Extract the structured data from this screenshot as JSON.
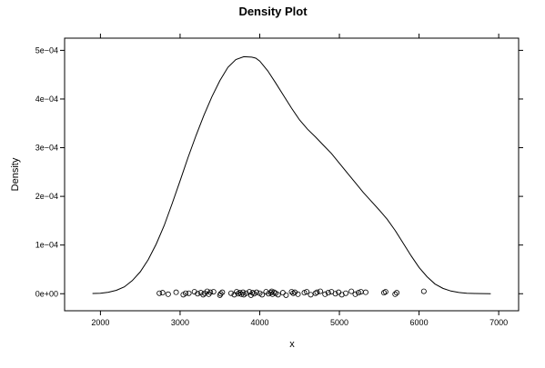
{
  "chart_data": {
    "type": "line",
    "title": "Density Plot",
    "xlabel": "x",
    "ylabel": "Density",
    "xlim": [
      1550,
      7250
    ],
    "ylim": [
      -3.5e-05,
      0.000525
    ],
    "x_ticks": [
      {
        "value": 2000,
        "label": "2000"
      },
      {
        "value": 3000,
        "label": "3000"
      },
      {
        "value": 4000,
        "label": "4000"
      },
      {
        "value": 5000,
        "label": "5000"
      },
      {
        "value": 6000,
        "label": "6000"
      },
      {
        "value": 7000,
        "label": "7000"
      }
    ],
    "y_ticks": [
      {
        "value": 0,
        "label": "0e+00"
      },
      {
        "value": 0.0001,
        "label": "1e−04"
      },
      {
        "value": 0.0002,
        "label": "2e−04"
      },
      {
        "value": 0.0003,
        "label": "3e−04"
      },
      {
        "value": 0.0004,
        "label": "4e−04"
      },
      {
        "value": 0.0005,
        "label": "5e−04"
      }
    ],
    "grid": false,
    "series": [
      {
        "kind": "density",
        "x": [
          1900,
          2000,
          2100,
          2200,
          2300,
          2400,
          2500,
          2600,
          2700,
          2800,
          2900,
          3000,
          3100,
          3200,
          3300,
          3400,
          3500,
          3600,
          3700,
          3800,
          3900,
          3950,
          4000,
          4100,
          4200,
          4300,
          4400,
          4500,
          4600,
          4700,
          4800,
          4900,
          5000,
          5100,
          5200,
          5300,
          5400,
          5500,
          5600,
          5700,
          5800,
          5900,
          6000,
          6100,
          6200,
          6300,
          6400,
          6500,
          6600,
          6700,
          6800,
          6900
        ],
        "y": [
          5e-07,
          1e-06,
          3e-06,
          7e-06,
          1.4e-05,
          2.7e-05,
          4.5e-05,
          7e-05,
          0.000102,
          0.00014,
          0.000185,
          0.000232,
          0.00028,
          0.000325,
          0.000367,
          0.000405,
          0.000438,
          0.000465,
          0.000481,
          0.000487,
          0.000486,
          0.000484,
          0.000478,
          0.000458,
          0.000433,
          0.000407,
          0.000381,
          0.000357,
          0.000338,
          0.000322,
          0.000305,
          0.000288,
          0.000268,
          0.000248,
          0.000228,
          0.000208,
          0.00019,
          0.000172,
          0.000153,
          0.00013,
          0.000104,
          7.8e-05,
          5.4e-05,
          3.5e-05,
          2e-05,
          1.1e-05,
          5.5e-06,
          2.5e-06,
          1e-06,
          5e-07,
          2e-07,
          1e-07
        ]
      },
      {
        "kind": "rug-points",
        "x": [
          2740,
          2780,
          2850,
          2950,
          3040,
          3070,
          3110,
          3180,
          3220,
          3260,
          3290,
          3310,
          3340,
          3360,
          3380,
          3420,
          3500,
          3510,
          3530,
          3640,
          3680,
          3710,
          3730,
          3750,
          3770,
          3790,
          3800,
          3830,
          3870,
          3890,
          3910,
          3930,
          3960,
          4000,
          4030,
          4080,
          4110,
          4140,
          4150,
          4160,
          4180,
          4200,
          4230,
          4290,
          4330,
          4400,
          4420,
          4440,
          4480,
          4560,
          4590,
          4640,
          4700,
          4720,
          4760,
          4820,
          4860,
          4900,
          4950,
          4990,
          5030,
          5080,
          5150,
          5200,
          5240,
          5270,
          5330,
          5560,
          5580,
          5700,
          5720,
          6060
        ],
        "y": [
          1e-06,
          2e-06,
          -1e-06,
          3e-06,
          -2e-06,
          1e-06,
          1e-06,
          4e-06,
          0,
          2e-06,
          -2e-06,
          1e-06,
          5e-06,
          -1e-06,
          3e-06,
          4e-06,
          -3e-06,
          0,
          3e-06,
          1e-06,
          -2e-06,
          4e-06,
          0,
          2e-06,
          -1e-06,
          3e-06,
          -2e-06,
          1e-06,
          4e-06,
          -3e-06,
          2e-06,
          0,
          3e-06,
          1e-06,
          -2e-06,
          4e-06,
          0,
          2e-06,
          5e-06,
          -1e-06,
          3e-06,
          1e-06,
          -2e-06,
          2e-06,
          -3e-06,
          4e-06,
          1e-06,
          3e-06,
          -1e-06,
          2e-06,
          4e-06,
          -2e-06,
          1e-06,
          3e-06,
          5e-06,
          -1e-06,
          2e-06,
          4e-06,
          0,
          3e-06,
          -2e-06,
          1e-06,
          5e-06,
          -1e-06,
          2e-06,
          4e-06,
          3e-06,
          2e-06,
          4e-06,
          -1e-06,
          2e-06,
          5e-06
        ]
      }
    ]
  }
}
